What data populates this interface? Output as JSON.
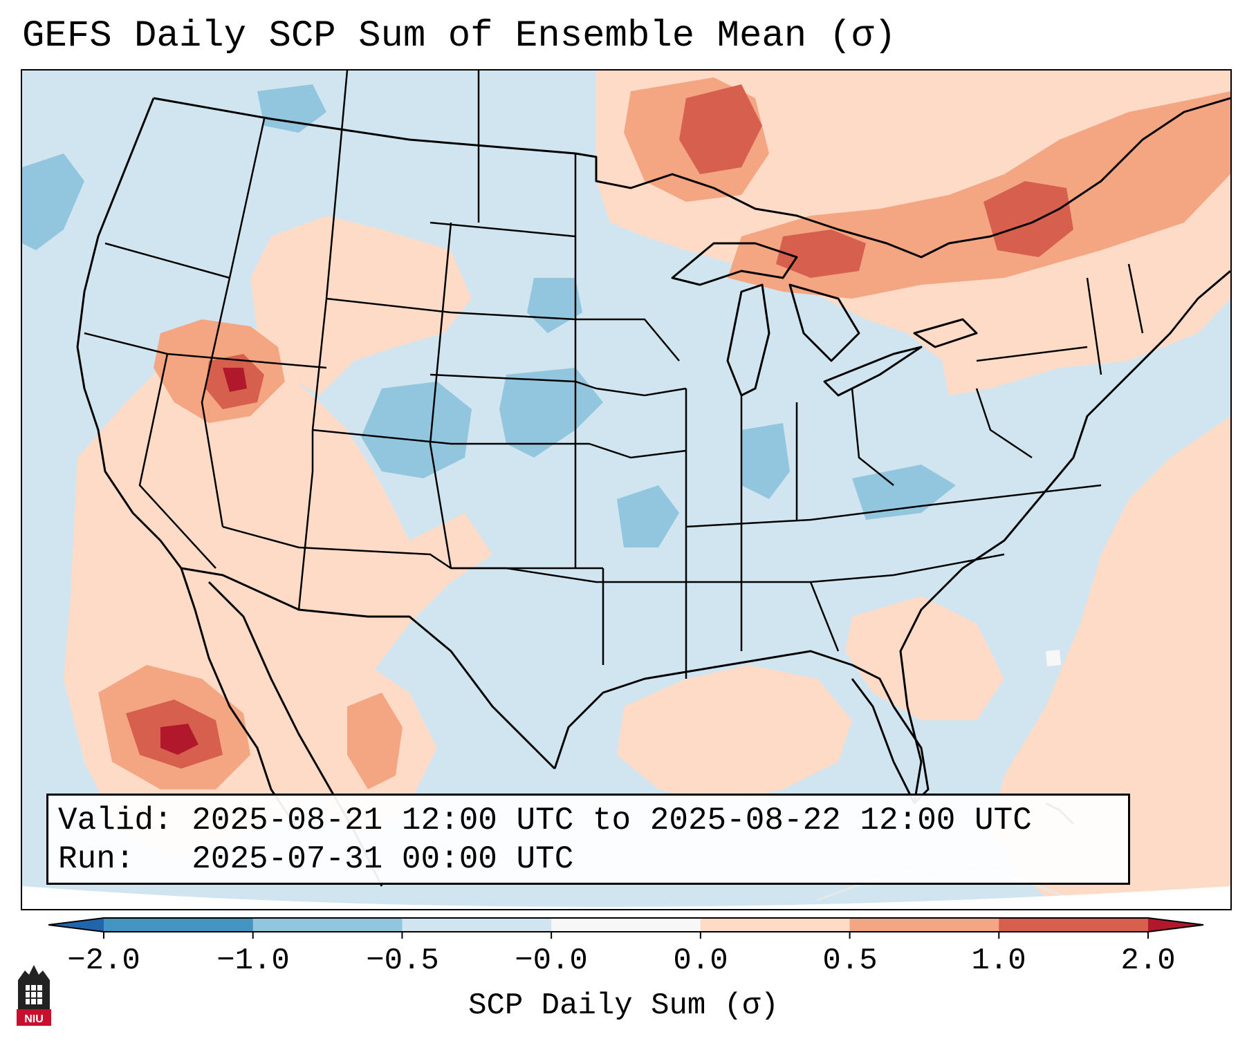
{
  "title": "GEFS Daily SCP Sum of Ensemble Mean (σ)",
  "info": {
    "valid_line": "Valid: 2025-08-21 12:00 UTC to 2025-08-22 12:00 UTC",
    "run_line": "Run:   2025-07-31 00:00 UTC"
  },
  "colorbar": {
    "label": "SCP Daily Sum (σ)",
    "ticks": [
      "−2.0",
      "−1.0",
      "−0.5",
      "−0.0",
      "0.0",
      "0.5",
      "1.0",
      "2.0"
    ],
    "colors": [
      "#4393c3",
      "#92c5de",
      "#d1e5f0",
      "#f7f7f7",
      "#fddbc7",
      "#f4a582",
      "#d6604d"
    ],
    "under_color": "#2166ac",
    "over_color": "#b2182b"
  },
  "logo": {
    "text": "NIU"
  },
  "colors": {
    "ocean_neutral": "#d1e5f0",
    "light_red": "#fddbc7",
    "med_red": "#f4a582",
    "strong_red": "#d6604d",
    "dark_red": "#b2182b",
    "light_blue": "#92c5de",
    "med_blue": "#4393c3"
  }
}
